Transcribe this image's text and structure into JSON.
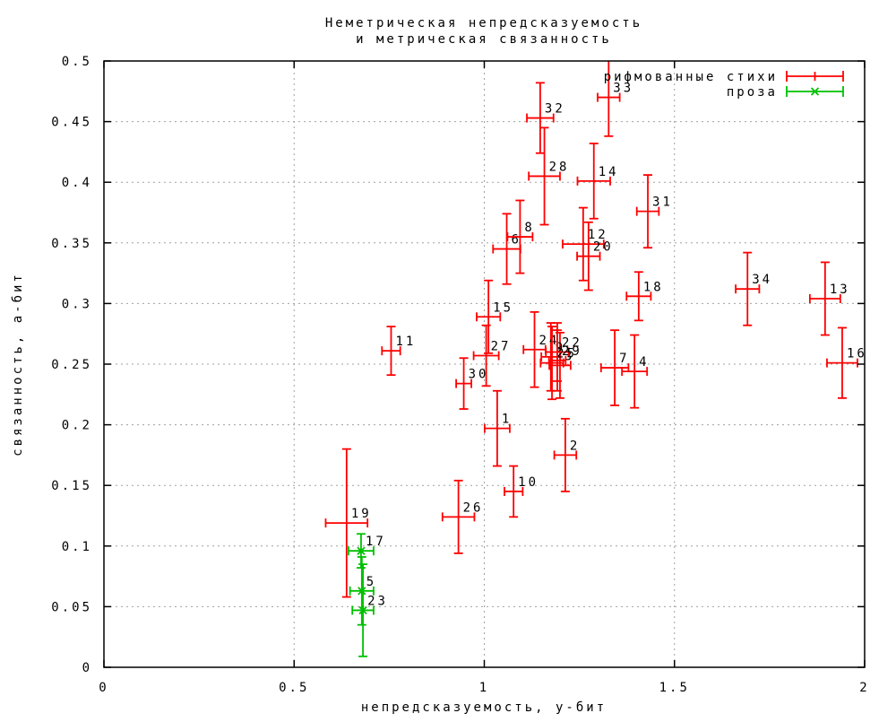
{
  "chart_data": {
    "type": "scatter",
    "title": "Неметрическая непредсказуемость и метрическая связанность",
    "title_line1": "Неметрическая непредсказуемость",
    "title_line2": "и метрическая связанность",
    "xlabel": "непредсказуемость, у-бит",
    "ylabel": "связанность, а-бит",
    "xlim": [
      0,
      2
    ],
    "ylim": [
      0,
      0.5
    ],
    "x_ticks": [
      0,
      0.5,
      1,
      1.5,
      2
    ],
    "x_tick_labels": [
      "0",
      "0.5",
      "1",
      "1.5",
      "2"
    ],
    "y_ticks": [
      0,
      0.05,
      0.1,
      0.15,
      0.2,
      0.25,
      0.3,
      0.35,
      0.4,
      0.45,
      0.5
    ],
    "y_tick_labels": [
      "0",
      "0.05",
      "0.1",
      "0.15",
      "0.2",
      "0.25",
      "0.3",
      "0.35",
      "0.4",
      "0.45",
      "0.5"
    ],
    "grid": true,
    "legend_position": "top-right-inside",
    "point_label_color": "#000000",
    "series": [
      {
        "name": "рифмованные стихи",
        "color": "#ff0000",
        "marker": "errorbar-tick",
        "points": [
          {
            "label": "1",
            "x": 1.034,
            "y": 0.197,
            "xerr": 0.033,
            "yerr": 0.031
          },
          {
            "label": "2",
            "x": 1.213,
            "y": 0.175,
            "xerr": 0.029,
            "yerr": 0.03
          },
          {
            "label": "3",
            "x": 1.199,
            "y": 0.249,
            "xerr": 0.028,
            "yerr": 0.027
          },
          {
            "label": "4",
            "x": 1.395,
            "y": 0.244,
            "xerr": 0.033,
            "yerr": 0.03
          },
          {
            "label": "6",
            "x": 1.059,
            "y": 0.345,
            "xerr": 0.036,
            "yerr": 0.029
          },
          {
            "label": "7",
            "x": 1.343,
            "y": 0.247,
            "xerr": 0.036,
            "yerr": 0.031
          },
          {
            "label": "8",
            "x": 1.094,
            "y": 0.355,
            "xerr": 0.033,
            "yerr": 0.03
          },
          {
            "label": "9",
            "x": 1.175,
            "y": 0.256,
            "xerr": 0.025,
            "yerr": 0.028
          },
          {
            "label": "10",
            "x": 1.077,
            "y": 0.145,
            "xerr": 0.024,
            "yerr": 0.021
          },
          {
            "label": "11",
            "x": 0.755,
            "y": 0.261,
            "xerr": 0.024,
            "yerr": 0.02
          },
          {
            "label": "12",
            "x": 1.26,
            "y": 0.349,
            "xerr": 0.054,
            "yerr": 0.03
          },
          {
            "label": "13",
            "x": 1.896,
            "y": 0.304,
            "xerr": 0.04,
            "yerr": 0.03
          },
          {
            "label": "14",
            "x": 1.288,
            "y": 0.401,
            "xerr": 0.043,
            "yerr": 0.031
          },
          {
            "label": "15",
            "x": 1.011,
            "y": 0.289,
            "xerr": 0.031,
            "yerr": 0.03
          },
          {
            "label": "16",
            "x": 1.941,
            "y": 0.251,
            "xerr": 0.04,
            "yerr": 0.029
          },
          {
            "label": "18",
            "x": 1.406,
            "y": 0.306,
            "xerr": 0.032,
            "yerr": 0.02
          },
          {
            "label": "19",
            "x": 0.638,
            "y": 0.119,
            "xerr": 0.055,
            "yerr": 0.061
          },
          {
            "label": "20",
            "x": 1.274,
            "y": 0.339,
            "xerr": 0.03,
            "yerr": 0.028
          },
          {
            "label": "22",
            "x": 1.192,
            "y": 0.26,
            "xerr": 0.03,
            "yerr": 0.024
          },
          {
            "label": "24",
            "x": 1.132,
            "y": 0.262,
            "xerr": 0.029,
            "yerr": 0.031
          },
          {
            "label": "25",
            "x": 1.178,
            "y": 0.251,
            "xerr": 0.03,
            "yerr": 0.03
          },
          {
            "label": "26",
            "x": 0.932,
            "y": 0.124,
            "xerr": 0.042,
            "yerr": 0.03
          },
          {
            "label": "27",
            "x": 1.005,
            "y": 0.257,
            "xerr": 0.033,
            "yerr": 0.025
          },
          {
            "label": "28",
            "x": 1.158,
            "y": 0.405,
            "xerr": 0.041,
            "yerr": 0.04
          },
          {
            "label": "29",
            "x": 1.192,
            "y": 0.253,
            "xerr": 0.022,
            "yerr": 0.025
          },
          {
            "label": "30",
            "x": 0.946,
            "y": 0.234,
            "xerr": 0.02,
            "yerr": 0.021
          },
          {
            "label": "31",
            "x": 1.43,
            "y": 0.376,
            "xerr": 0.029,
            "yerr": 0.03
          },
          {
            "label": "32",
            "x": 1.147,
            "y": 0.453,
            "xerr": 0.035,
            "yerr": 0.029
          },
          {
            "label": "33",
            "x": 1.327,
            "y": 0.47,
            "xerr": 0.029,
            "yerr": 0.032
          },
          {
            "label": "34",
            "x": 1.692,
            "y": 0.312,
            "xerr": 0.031,
            "yerr": 0.03
          }
        ]
      },
      {
        "name": "проза",
        "color": "#00c000",
        "marker": "x",
        "points": [
          {
            "label": "17",
            "x": 0.676,
            "y": 0.096,
            "xerr": 0.033,
            "yerr": 0.014
          },
          {
            "label": "5",
            "x": 0.678,
            "y": 0.063,
            "xerr": 0.031,
            "yerr": 0.028
          },
          {
            "label": "23",
            "x": 0.681,
            "y": 0.047,
            "xerr": 0.028,
            "yerr": 0.038
          }
        ]
      }
    ]
  }
}
